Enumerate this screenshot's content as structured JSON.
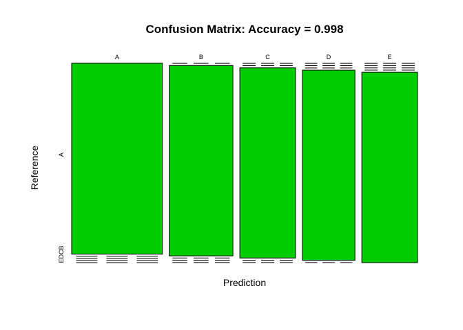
{
  "chart_data": {
    "type": "mosaic",
    "title": "Confusion Matrix: Accuracy =  0.998",
    "xlabel": "Prediction",
    "ylabel": "Reference",
    "x_categories": [
      "A",
      "B",
      "C",
      "D",
      "E"
    ],
    "y_categories": [
      "A",
      "B",
      "C",
      "D",
      "E"
    ],
    "y_tick_labels": [
      "A",
      "EDCB"
    ],
    "column_proportions": [
      0.285,
      0.2,
      0.175,
      0.165,
      0.175
    ],
    "matrix": [
      [
        0.999,
        0.0,
        0.0,
        0.0,
        0.0
      ],
      [
        0.0,
        0.996,
        0.002,
        0.0,
        0.0
      ],
      [
        0.0,
        0.0,
        0.995,
        0.001,
        0.0
      ],
      [
        0.0,
        0.0,
        0.0,
        0.995,
        0.0
      ],
      [
        0.0,
        0.0,
        0.0,
        0.0,
        0.996
      ]
    ],
    "diagonal_color": "#00CC00",
    "off_diagonal_color": "#FFFFFF",
    "border_color": "#000000"
  }
}
